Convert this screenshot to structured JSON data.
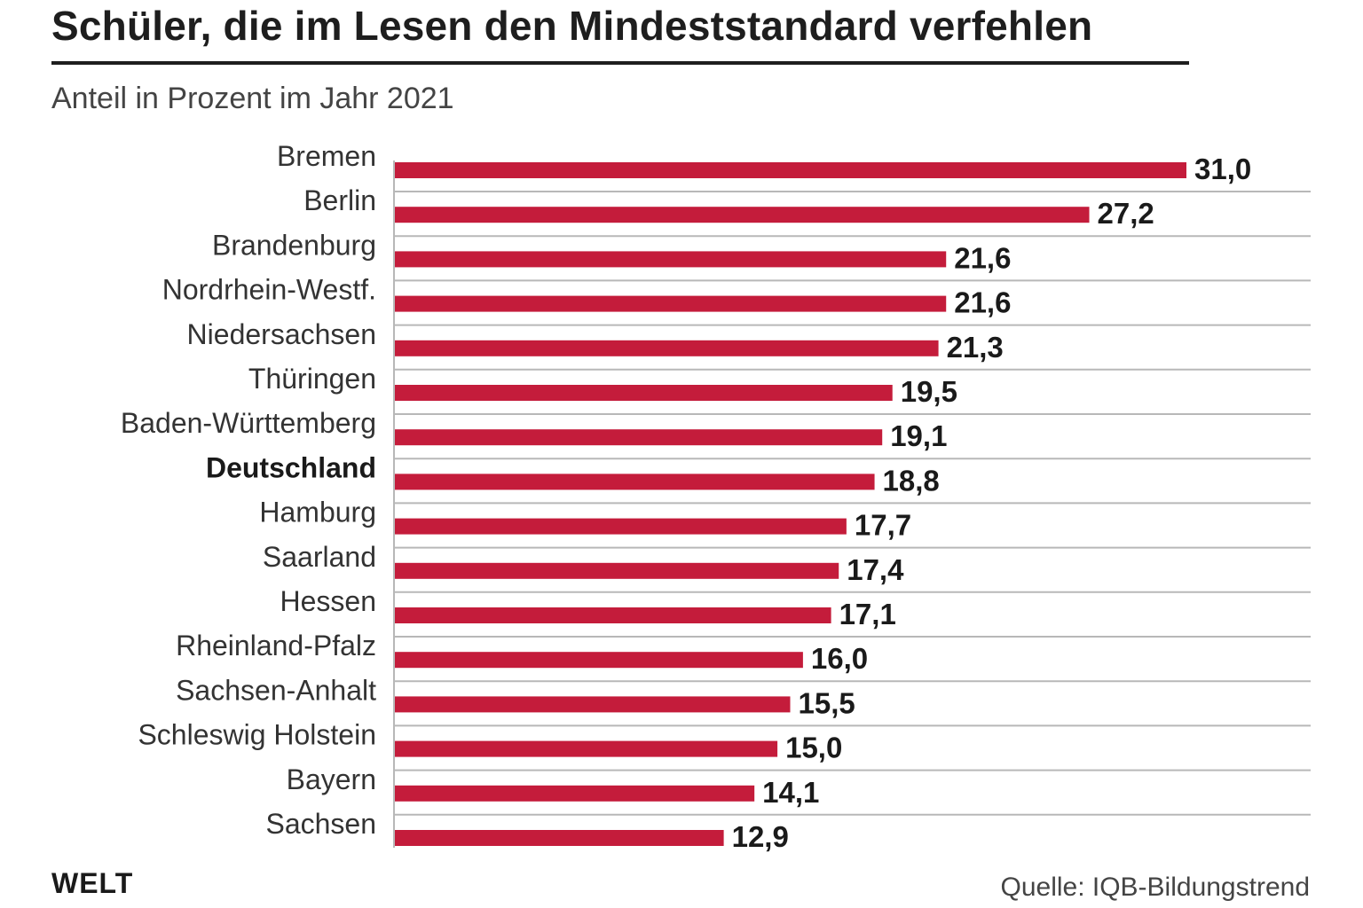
{
  "title": "Schüler, die im Lesen den Mindeststandard verfehlen",
  "subtitle": "Anteil in Prozent im Jahr 2021",
  "logo": "WELT",
  "source": "Quelle: IQB-Bildungstrend",
  "colors": {
    "bar": "#c41c3b",
    "grid": "#b8b8b8",
    "axis": "#b8b8b8"
  },
  "chart_data": {
    "type": "bar",
    "orientation": "horizontal",
    "title": "Schüler, die im Lesen den Mindeststandard verfehlen",
    "subtitle": "Anteil in Prozent im Jahr 2021",
    "categories": [
      "Bremen",
      "Berlin",
      "Brandenburg",
      "Nordrhein-Westf.",
      "Niedersachsen",
      "Thüringen",
      "Baden-Württemberg",
      "Deutschland",
      "Hamburg",
      "Saarland",
      "Hessen",
      "Rheinland-Pfalz",
      "Sachsen-Anhalt",
      "Schleswig Holstein",
      "Bayern",
      "Sachsen"
    ],
    "values": [
      31.0,
      27.2,
      21.6,
      21.6,
      21.3,
      19.5,
      19.1,
      18.8,
      17.7,
      17.4,
      17.1,
      16.0,
      15.5,
      15.0,
      14.1,
      12.9
    ],
    "value_labels": [
      "31,0",
      "27,2",
      "21,6",
      "21,6",
      "21,3",
      "19,5",
      "19,1",
      "18,8",
      "17,7",
      "17,4",
      "17,1",
      "16,0",
      "15,5",
      "15,0",
      "14,1",
      "12,9"
    ],
    "highlight_category": "Deutschland",
    "xlim": [
      0,
      31
    ],
    "grid": true,
    "legend": "none"
  }
}
